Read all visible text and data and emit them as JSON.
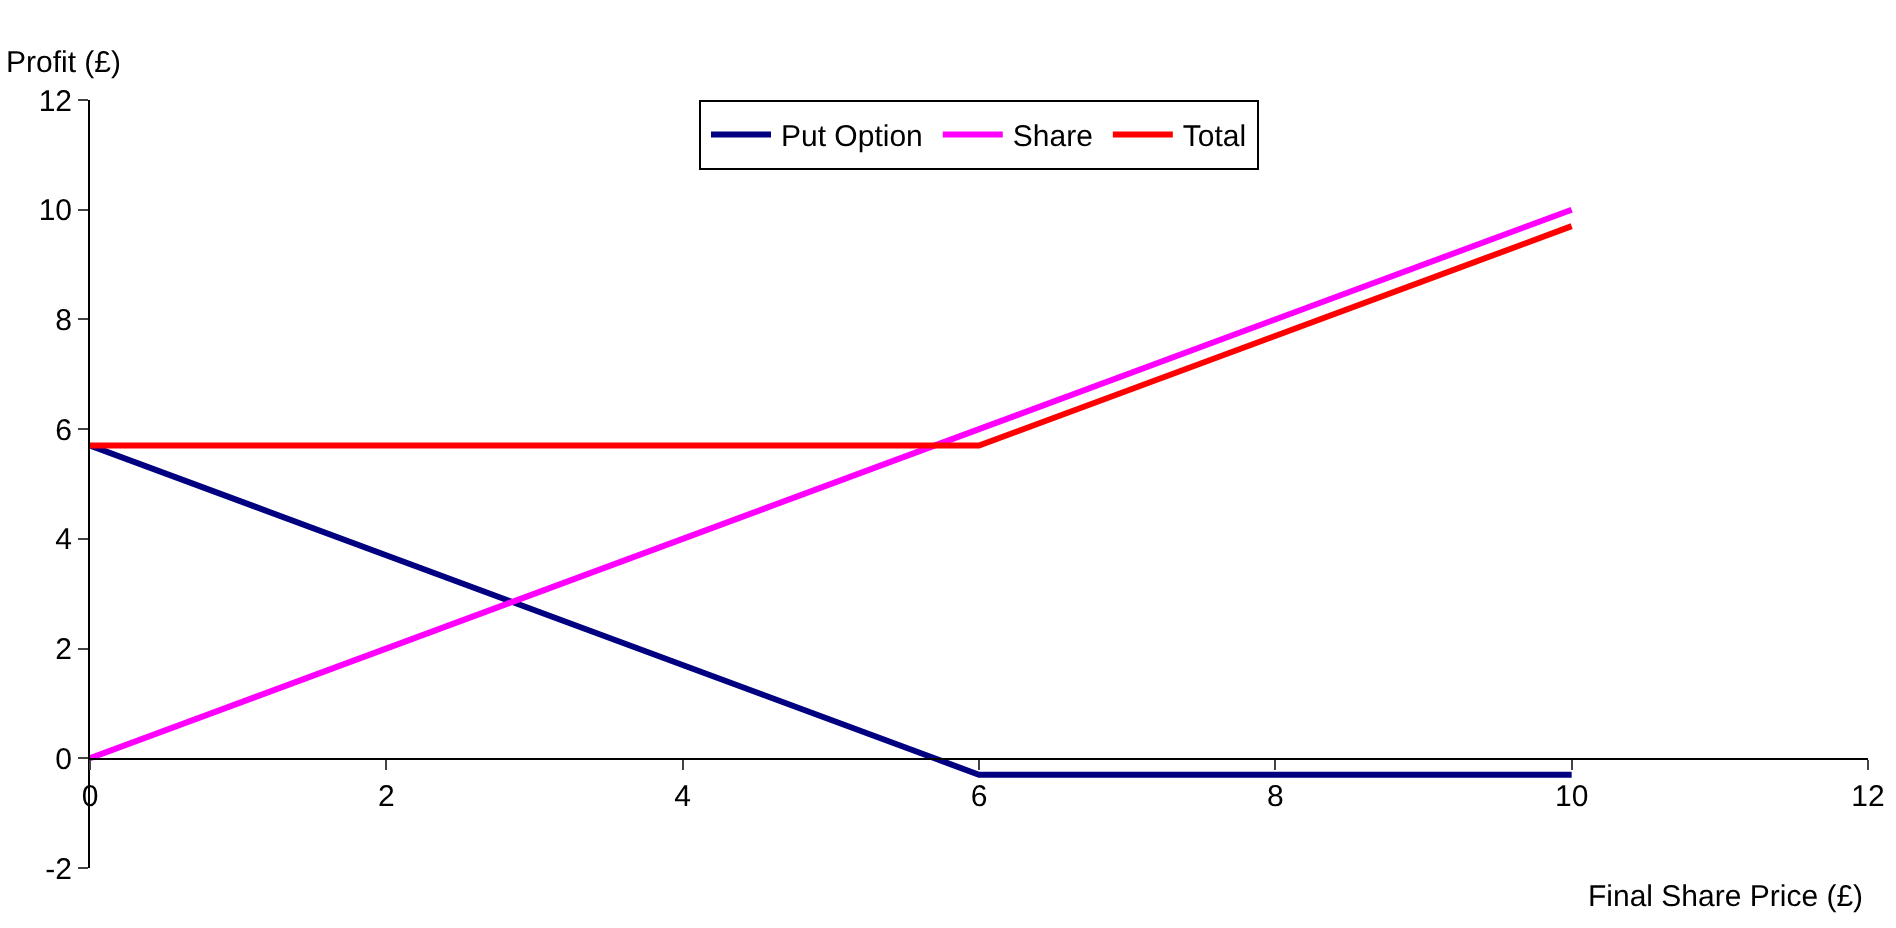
{
  "chart_data": {
    "type": "line",
    "xlabel": "Final Share Price (£)",
    "ylabel": "Profit (£)",
    "xlim": [
      0,
      12
    ],
    "xticks": [
      0,
      2,
      4,
      6,
      8,
      10,
      12
    ],
    "ylim": [
      -2,
      12
    ],
    "yticks": [
      -2,
      0,
      2,
      4,
      6,
      8,
      10,
      12
    ],
    "grid": false,
    "legend": "top",
    "marker": "none",
    "line_style": "solid",
    "series": [
      {
        "name": "Put Option",
        "color": "#000080",
        "x": [
          0,
          5.7,
          6,
          10
        ],
        "values": [
          5.7,
          0,
          -0.3,
          -0.3
        ]
      },
      {
        "name": "Share",
        "color": "#ff00ff",
        "x": [
          0,
          6,
          10
        ],
        "values": [
          0,
          6,
          10
        ]
      },
      {
        "name": "Total",
        "color": "#ff0000",
        "x": [
          0,
          6,
          10
        ],
        "values": [
          5.7,
          5.7,
          9.7
        ]
      }
    ]
  }
}
